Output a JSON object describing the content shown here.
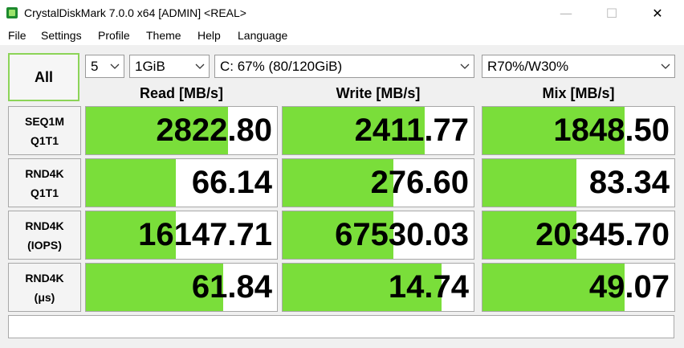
{
  "window": {
    "title": "CrystalDiskMark 7.0.0 x64 [ADMIN] <REAL>",
    "minimize_glyph": "—",
    "maximize_glyph": "☐",
    "close_glyph": "✕"
  },
  "menu": [
    "File",
    "Settings",
    "Profile",
    "Theme",
    "Help",
    "Language"
  ],
  "controls": {
    "all_button": "All",
    "count": "5",
    "size": "1GiB",
    "drive": "C: 67% (80/120GiB)",
    "profile": "R70%/W30%"
  },
  "headers": {
    "read": "Read [MB/s]",
    "write": "Write [MB/s]",
    "mix": "Mix [MB/s]"
  },
  "rows": [
    {
      "label1": "SEQ1M",
      "label2": "Q1T1",
      "read": "2822.80",
      "write": "2411.77",
      "mix": "1848.50",
      "read_fill": 0.745,
      "write_fill": 0.745,
      "mix_fill": 0.74
    },
    {
      "label1": "RND4K",
      "label2": "Q1T1",
      "read": "66.14",
      "write": "276.60",
      "mix": "83.34",
      "read_fill": 0.47,
      "write_fill": 0.58,
      "mix_fill": 0.49
    },
    {
      "label1": "RND4K",
      "label2": "(IOPS)",
      "read": "16147.71",
      "write": "67530.03",
      "mix": "20345.70",
      "read_fill": 0.47,
      "write_fill": 0.58,
      "mix_fill": 0.49
    },
    {
      "label1": "RND4K",
      "label2": "(μs)",
      "read": "61.84",
      "write": "14.74",
      "mix": "49.07",
      "read_fill": 0.72,
      "write_fill": 0.83,
      "mix_fill": 0.74
    }
  ],
  "status": "",
  "colors": {
    "bar_fill": "#7ade3a",
    "all_border": "#8cd458"
  }
}
